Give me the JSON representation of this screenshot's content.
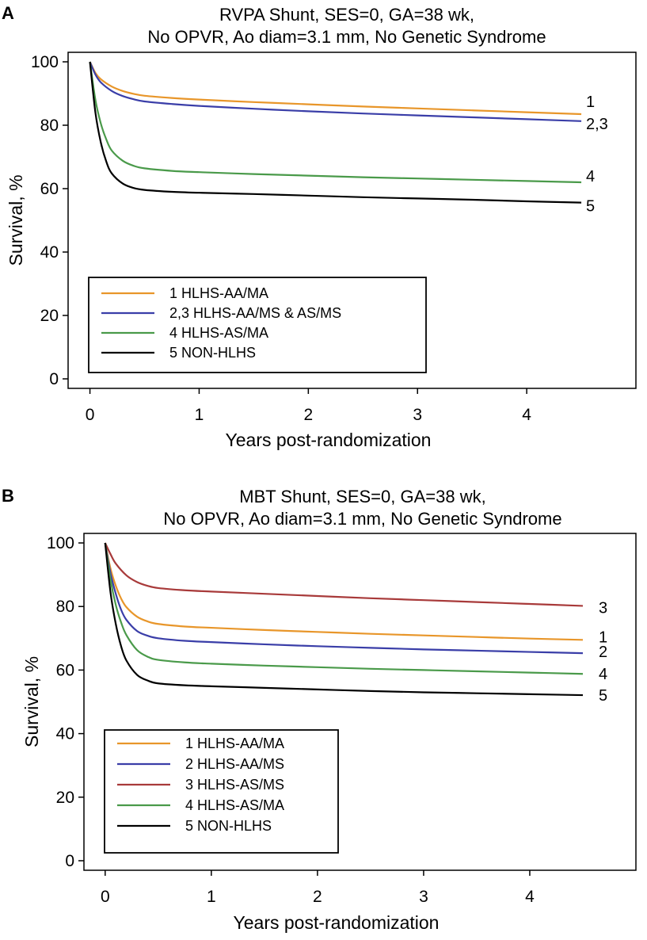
{
  "chart_data": [
    {
      "type": "line",
      "panel": "A",
      "title": [
        "RVPA Shunt, SES=0, GA=38 wk,",
        "No OPVR, Ao diam=3.1 mm, No Genetic Syndrome"
      ],
      "xlabel": "Years post-randomization",
      "ylabel": "Survival, %",
      "xlim": [
        -0.2,
        5.0
      ],
      "ylim": [
        -3,
        103
      ],
      "xticks": [
        0,
        1,
        2,
        3,
        4
      ],
      "yticks": [
        0,
        20,
        40,
        60,
        80,
        100
      ],
      "legend_position": "bottom-left",
      "series": [
        {
          "name": "1 HLHS-AA/MA",
          "end_label": "1",
          "color": "#e8962a",
          "x": [
            0,
            0.05,
            0.1,
            0.2,
            0.3,
            0.4,
            0.5,
            0.75,
            1,
            1.5,
            2,
            2.5,
            3,
            3.5,
            4,
            4.5
          ],
          "y": [
            100,
            96.5,
            94.5,
            92.2,
            90.8,
            89.9,
            89.3,
            88.6,
            88.1,
            87.3,
            86.6,
            85.9,
            85.3,
            84.7,
            84.1,
            83.5
          ]
        },
        {
          "name": "2,3 HLHS-AA/MS & AS/MS",
          "end_label": "2,3",
          "color": "#3a3ea8",
          "x": [
            0,
            0.05,
            0.1,
            0.2,
            0.3,
            0.4,
            0.5,
            0.75,
            1,
            1.5,
            2,
            2.5,
            3,
            3.5,
            4,
            4.5
          ],
          "y": [
            100,
            96.0,
            93.5,
            90.8,
            89.2,
            88.2,
            87.5,
            86.7,
            86.1,
            85.2,
            84.4,
            83.7,
            83.1,
            82.5,
            81.9,
            81.3
          ]
        },
        {
          "name": "4 HLHS-AS/MA",
          "end_label": "4",
          "color": "#4a9a4a",
          "x": [
            0,
            0.05,
            0.1,
            0.15,
            0.2,
            0.3,
            0.4,
            0.5,
            0.75,
            1,
            1.5,
            2,
            2.5,
            3,
            3.5,
            4,
            4.5
          ],
          "y": [
            100,
            88.0,
            80.5,
            75.5,
            72.0,
            68.8,
            67.2,
            66.4,
            65.6,
            65.2,
            64.6,
            64.1,
            63.6,
            63.2,
            62.8,
            62.4,
            62.0
          ]
        },
        {
          "name": "5 NON-HLHS",
          "end_label": "5",
          "color": "#000000",
          "x": [
            0,
            0.05,
            0.1,
            0.15,
            0.2,
            0.3,
            0.4,
            0.5,
            0.75,
            1,
            1.5,
            2,
            2.5,
            3,
            3.5,
            4,
            4.5
          ],
          "y": [
            100,
            84.0,
            74.5,
            68.5,
            64.8,
            61.6,
            60.2,
            59.6,
            59.0,
            58.7,
            58.3,
            57.8,
            57.3,
            56.9,
            56.5,
            56.0,
            55.6
          ]
        }
      ],
      "legend_order": [
        0,
        1,
        2,
        3
      ]
    },
    {
      "type": "line",
      "panel": "B",
      "title": [
        "MBT Shunt, SES=0, GA=38 wk,",
        "No OPVR, Ao diam=3.1 mm, No Genetic Syndrome"
      ],
      "xlabel": "Years post-randomization",
      "ylabel": "Survival, %",
      "xlim": [
        -0.2,
        5.0
      ],
      "ylim": [
        -3,
        103
      ],
      "xticks": [
        0,
        1,
        2,
        3,
        4
      ],
      "yticks": [
        0,
        20,
        40,
        60,
        80,
        100
      ],
      "legend_position": "bottom-left",
      "series": [
        {
          "name": "1 HLHS-AA/MA",
          "end_label": "1",
          "color": "#e8962a",
          "x": [
            0,
            0.05,
            0.1,
            0.15,
            0.2,
            0.3,
            0.4,
            0.5,
            0.75,
            1,
            1.5,
            2,
            2.5,
            3,
            3.5,
            4,
            4.5
          ],
          "y": [
            100,
            92.0,
            86.5,
            82.5,
            79.8,
            76.8,
            75.3,
            74.5,
            73.7,
            73.3,
            72.6,
            72.0,
            71.4,
            70.9,
            70.4,
            69.9,
            69.5
          ]
        },
        {
          "name": "2 HLHS-AA/MS",
          "end_label": "2",
          "color": "#3a3ea8",
          "x": [
            0,
            0.05,
            0.1,
            0.15,
            0.2,
            0.3,
            0.4,
            0.5,
            0.75,
            1,
            1.5,
            2,
            2.5,
            3,
            3.5,
            4,
            4.5
          ],
          "y": [
            100,
            90.5,
            84.0,
            79.0,
            75.8,
            72.3,
            70.8,
            70.0,
            69.2,
            68.8,
            68.1,
            67.5,
            67.0,
            66.5,
            66.1,
            65.7,
            65.3
          ]
        },
        {
          "name": "3 HLHS-AS/MS",
          "end_label": "3",
          "color": "#a83a3a",
          "x": [
            0,
            0.05,
            0.1,
            0.2,
            0.3,
            0.4,
            0.5,
            0.75,
            1,
            1.5,
            2,
            2.5,
            3,
            3.5,
            4,
            4.5
          ],
          "y": [
            100,
            96.5,
            93.5,
            89.8,
            87.7,
            86.5,
            85.8,
            85.1,
            84.7,
            84.0,
            83.3,
            82.6,
            82.0,
            81.4,
            80.8,
            80.2
          ]
        },
        {
          "name": "4 HLHS-AS/MA",
          "end_label": "4",
          "color": "#4a9a4a",
          "x": [
            0,
            0.05,
            0.1,
            0.15,
            0.2,
            0.3,
            0.4,
            0.5,
            0.75,
            1,
            1.5,
            2,
            2.5,
            3,
            3.5,
            4,
            4.5
          ],
          "y": [
            100,
            88.5,
            80.5,
            75.0,
            71.0,
            66.3,
            64.2,
            63.2,
            62.4,
            62.0,
            61.4,
            60.9,
            60.4,
            60.0,
            59.6,
            59.2,
            58.8
          ]
        },
        {
          "name": "5 NON-HLHS",
          "end_label": "5",
          "color": "#000000",
          "x": [
            0,
            0.05,
            0.1,
            0.15,
            0.2,
            0.3,
            0.4,
            0.5,
            0.75,
            1,
            1.5,
            2,
            2.5,
            3,
            3.5,
            4,
            4.5
          ],
          "y": [
            100,
            84.5,
            74.5,
            67.5,
            63.0,
            58.5,
            56.7,
            55.8,
            55.2,
            54.9,
            54.4,
            53.9,
            53.4,
            53.0,
            52.7,
            52.4,
            52.1
          ]
        }
      ],
      "legend_order": [
        0,
        1,
        2,
        3,
        4
      ]
    }
  ]
}
